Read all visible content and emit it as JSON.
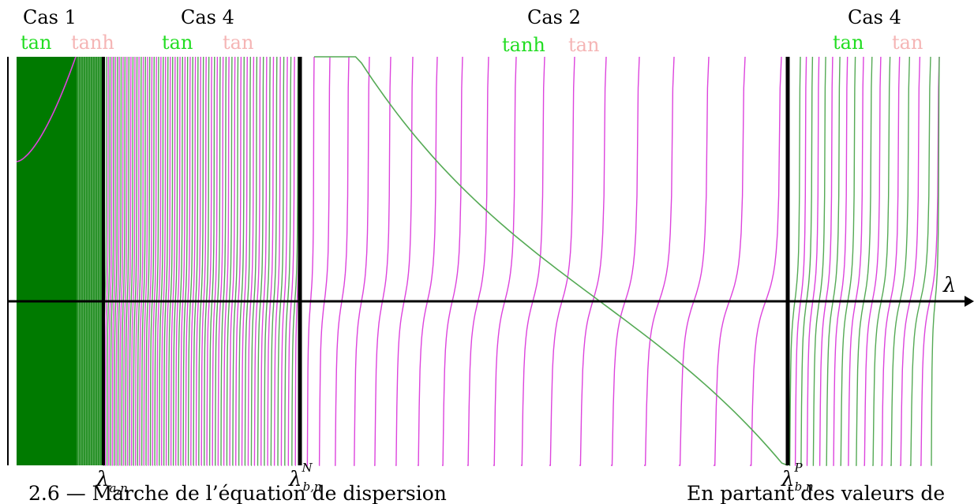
{
  "colors": {
    "tan_curve": "#dd44dd",
    "tanh_curve": "#55aa55",
    "green_label": "#22dd22",
    "pink_label": "#f5b5b5",
    "case1_fill": "#007a00",
    "axis": "#000000"
  },
  "chart_data": {
    "type": "line",
    "title": "",
    "xlabel": "λ",
    "ylabel": "",
    "grid": false,
    "regions": [
      {
        "case": "Cas 1",
        "left_fn": "tan",
        "right_fn": "tanh"
      },
      {
        "case": "Cas 4",
        "left_fn": "tan",
        "right_fn": "tan"
      },
      {
        "case": "Cas 2",
        "left_fn": "tanh",
        "right_fn": "tan"
      },
      {
        "case": "Cas 4",
        "left_fn": "tan",
        "right_fn": "tan"
      }
    ],
    "thresholds": [
      {
        "symbol": "λ",
        "sub": "a,n",
        "sup": ""
      },
      {
        "symbol": "λ",
        "sub": "b,n",
        "sup": "N"
      },
      {
        "symbol": "λ",
        "sub": "b,n",
        "sup": "P"
      }
    ],
    "series": [
      {
        "curve": "tan",
        "color": "#dd44dd"
      },
      {
        "curve": "tanh",
        "color": "#55aa55"
      }
    ]
  },
  "caption": {
    "text_left": "2.6 — Marche de l’équation de dispersion",
    "text_right": "En partant des valeurs de"
  }
}
